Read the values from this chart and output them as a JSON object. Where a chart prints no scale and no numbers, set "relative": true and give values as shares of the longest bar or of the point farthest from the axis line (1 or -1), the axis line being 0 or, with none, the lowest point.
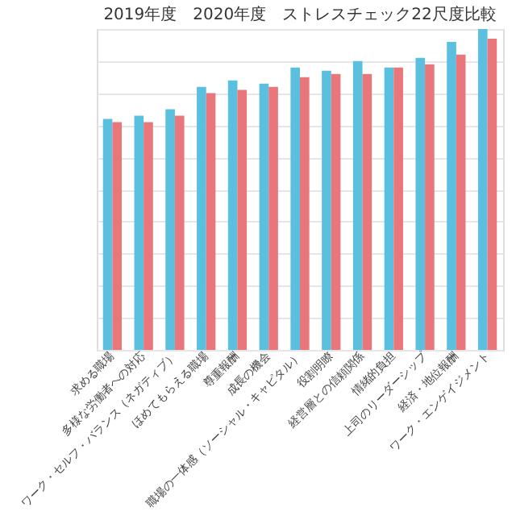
{
  "chart_data": {
    "type": "bar",
    "title": "2019年度　2020年度　ストレスチェック22尺度比較",
    "relative": true,
    "grid": "y",
    "categories": [
      "求める職場",
      "多様な労働者への対応",
      "ワーク・セルフ・バランス（ネガティブ）",
      "ほめてもらえる職場",
      "尊重報酬",
      "成長の機会",
      "職場の一体感（ソーシャル・キャピタル）",
      "役割明瞭",
      "経営層との信頼関係",
      "情緒的負担",
      "上司のリーダーシップ",
      "経済・地位報酬",
      "ワーク・エンゲイジメント"
    ],
    "series": [
      {
        "color": "#5bbfdf",
        "values": [
          0.72,
          0.73,
          0.75,
          0.82,
          0.84,
          0.83,
          0.88,
          0.87,
          0.9,
          0.88,
          0.91,
          0.96,
          1.0
        ]
      },
      {
        "color": "#e8767a",
        "values": [
          0.71,
          0.71,
          0.73,
          0.8,
          0.81,
          0.82,
          0.85,
          0.86,
          0.86,
          0.88,
          0.89,
          0.92,
          0.97
        ]
      }
    ]
  }
}
